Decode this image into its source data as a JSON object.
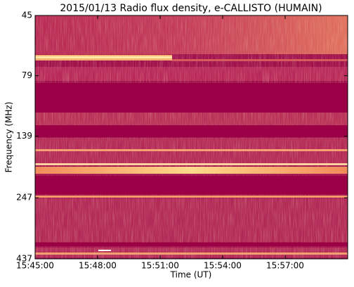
{
  "chart_data": {
    "type": "heatmap",
    "title": "2015/01/13  Radio flux density, e-CALLISTO (HUMAIN)",
    "x_label": "Time (UT)",
    "y_label": "Frequency (MHz)",
    "xlim": [
      "15:45:00",
      "16:00:00"
    ],
    "xticks": [
      "15:45:00",
      "15:48:00",
      "15:51:00",
      "15:54:00",
      "15:57:00"
    ],
    "ylim": [
      437,
      45
    ],
    "yticks": [
      45,
      79,
      139,
      247,
      437
    ],
    "ylog": true
  }
}
